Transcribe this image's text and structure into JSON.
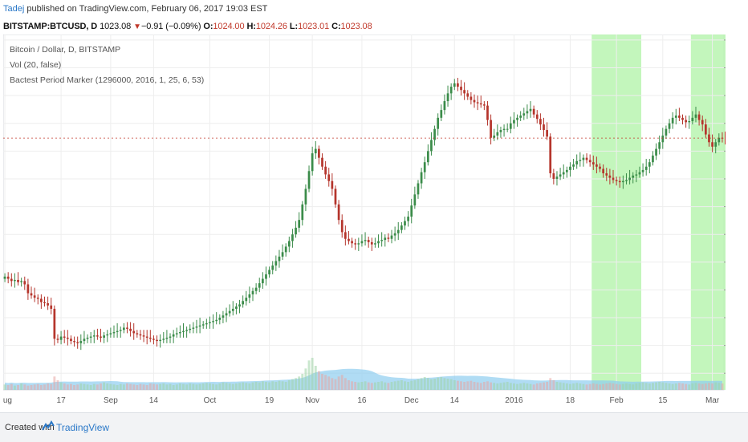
{
  "header": {
    "author": "Tadej",
    "published": "published on TradingView.com, February 06, 2017 19:03 EST",
    "symbol": "BITSTAMP:BTCUSD, D",
    "last": "1023.08",
    "change": "−0.91 (−0.09%)",
    "o_label": "O:",
    "o_value": "1024.00",
    "h_label": "H:",
    "h_value": "1024.26",
    "l_label": "L:",
    "l_value": "1023.01",
    "c_label": "C:",
    "c_value": "1023.08"
  },
  "legend": {
    "line1": "Bitcoin / Dollar, D, BITSTAMP",
    "line2": "Vol (20, false)",
    "line3": "Bactest Period Marker (1296000, 2016, 1, 25, 6, 53)"
  },
  "footer": {
    "created": "Created with",
    "brand": "TradingView"
  },
  "colors": {
    "up": "#3b8c4a",
    "down": "#b5352c",
    "band": "#b9f5b0",
    "volume_ma": "#8ecdf0",
    "price_label": "#c0392b",
    "grid": "#eeeeee"
  },
  "chart_data": {
    "type": "candlestick",
    "ylim": [
      185,
      505
    ],
    "y_ticks": [
      200,
      225,
      250,
      275,
      300,
      325,
      350,
      375,
      400,
      425,
      450,
      475,
      500
    ],
    "x_ticks": [
      {
        "label": "Aug",
        "index": 0
      },
      {
        "label": "17",
        "index": 17
      },
      {
        "label": "Sep",
        "index": 32
      },
      {
        "label": "14",
        "index": 45
      },
      {
        "label": "Oct",
        "index": 62
      },
      {
        "label": "19",
        "index": 80
      },
      {
        "label": "Nov",
        "index": 93
      },
      {
        "label": "16",
        "index": 108
      },
      {
        "label": "Dec",
        "index": 123
      },
      {
        "label": "14",
        "index": 136
      },
      {
        "label": "2016",
        "index": 154
      },
      {
        "label": "18",
        "index": 171
      },
      {
        "label": "Feb",
        "index": 185
      },
      {
        "label": "15",
        "index": 199
      },
      {
        "label": "Mar",
        "index": 214
      }
    ],
    "current_price": "411.75",
    "current_price_value": 411.75,
    "backtest_bands": [
      [
        178,
        192
      ],
      [
        208,
        218
      ]
    ],
    "closes": [
      287,
      285,
      283,
      284,
      282,
      283,
      280,
      272,
      270,
      268,
      267,
      264,
      263,
      261,
      258,
      231,
      230,
      233,
      232,
      231,
      229,
      228,
      227,
      229,
      231,
      232,
      233,
      234,
      233,
      232,
      234,
      235,
      236,
      237,
      238,
      239,
      241,
      240,
      238,
      236,
      235,
      234,
      233,
      232,
      231,
      230,
      229,
      230,
      231,
      232,
      233,
      235,
      236,
      237,
      238,
      239,
      240,
      241,
      242,
      243,
      244,
      245,
      246,
      247,
      248,
      250,
      252,
      254,
      256,
      258,
      260,
      262,
      265,
      268,
      271,
      274,
      277,
      281,
      285,
      289,
      293,
      297,
      301,
      305,
      309,
      314,
      319,
      325,
      331,
      338,
      352,
      366,
      382,
      398,
      402,
      394,
      386,
      379,
      373,
      366,
      352,
      338,
      327,
      321,
      319,
      317,
      316,
      317,
      319,
      320,
      318,
      316,
      317,
      319,
      320,
      322,
      321,
      324,
      326,
      329,
      333,
      337,
      341,
      351,
      361,
      371,
      381,
      390,
      400,
      410,
      420,
      430,
      437,
      445,
      452,
      458,
      461,
      458,
      455,
      452,
      449,
      446,
      444,
      443,
      442,
      441,
      428,
      412,
      414,
      417,
      419,
      420,
      420,
      425,
      428,
      430,
      432,
      434,
      436,
      438,
      433,
      429,
      424,
      419,
      413,
      380,
      375,
      377,
      379,
      381,
      383,
      386,
      388,
      391,
      392,
      394,
      392,
      390,
      388,
      386,
      384,
      380,
      378,
      376,
      374,
      373,
      372,
      373,
      374,
      376,
      378,
      379,
      381,
      383,
      386,
      390,
      396,
      402,
      408,
      414,
      420,
      425,
      430,
      432,
      430,
      428,
      426,
      427,
      430,
      433,
      428,
      424,
      415,
      408,
      404,
      408,
      412,
      411.75
    ],
    "volumes": [
      10,
      9,
      11,
      8,
      9,
      12,
      10,
      8,
      9,
      10,
      11,
      9,
      10,
      12,
      11,
      25,
      18,
      14,
      12,
      10,
      11,
      9,
      10,
      12,
      11,
      10,
      9,
      11,
      10,
      12,
      14,
      12,
      11,
      10,
      9,
      11,
      10,
      12,
      11,
      10,
      9,
      11,
      10,
      9,
      12,
      11,
      10,
      11,
      12,
      10,
      11,
      9,
      10,
      12,
      11,
      10,
      12,
      11,
      10,
      11,
      12,
      13,
      12,
      11,
      10,
      12,
      14,
      13,
      12,
      11,
      12,
      13,
      14,
      13,
      12,
      14,
      15,
      14,
      16,
      15,
      14,
      16,
      15,
      17,
      16,
      15,
      18,
      20,
      22,
      25,
      30,
      40,
      55,
      60,
      45,
      35,
      30,
      28,
      25,
      22,
      20,
      25,
      28,
      22,
      18,
      16,
      15,
      14,
      15,
      16,
      14,
      13,
      14,
      15,
      16,
      14,
      13,
      15,
      16,
      17,
      18,
      16,
      15,
      17,
      18,
      20,
      22,
      24,
      22,
      20,
      21,
      23,
      24,
      22,
      21,
      20,
      18,
      17,
      16,
      15,
      16,
      17,
      15,
      14,
      13,
      15,
      16,
      14,
      13,
      12,
      13,
      14,
      15,
      13,
      12,
      11,
      12,
      13,
      12,
      11,
      10,
      12,
      13,
      14,
      15,
      22,
      18,
      15,
      14,
      13,
      12,
      11,
      12,
      13,
      12,
      11,
      10,
      11,
      12,
      11,
      10,
      11,
      12,
      13,
      12,
      11,
      10,
      11,
      12,
      11,
      10,
      12,
      13,
      14,
      13,
      12,
      13,
      14,
      15,
      14,
      13,
      12,
      11,
      12,
      13,
      12,
      11,
      10,
      12,
      13,
      12,
      11,
      12,
      13,
      12,
      14,
      13,
      12
    ]
  }
}
